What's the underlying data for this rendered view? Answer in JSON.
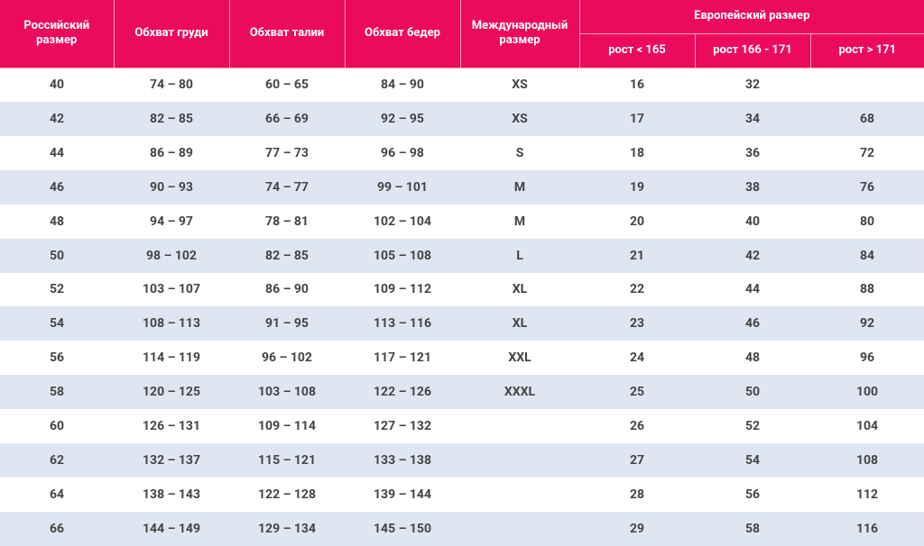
{
  "table": {
    "header": [
      "Российский размер",
      "Обхват груди",
      "Обхват талии",
      "Обхват бедер",
      "Международный размер"
    ],
    "group_header": "Европейский размер",
    "sub_header": [
      "рост < 165",
      "рост 166 - 171",
      "рост > 171"
    ],
    "rows": [
      [
        40,
        "74 – 80",
        "60 – 65",
        "84 – 90",
        "XS",
        16,
        32,
        null
      ],
      [
        42,
        "82 – 85",
        "66 – 69",
        "92 – 95",
        "XS",
        17,
        34,
        68
      ],
      [
        44,
        "86 – 89",
        "77 – 73",
        "96 – 98",
        "S",
        18,
        36,
        72
      ],
      [
        46,
        "90 – 93",
        "74 – 77",
        "99 – 101",
        "M",
        19,
        38,
        76
      ],
      [
        48,
        "94 – 97",
        "78 – 81",
        "102 – 104",
        "M",
        20,
        40,
        80
      ],
      [
        50,
        "98 – 102",
        "82 – 85",
        "105 – 108",
        "L",
        21,
        42,
        84
      ],
      [
        52,
        "103 – 107",
        "86 – 90",
        "109 – 112",
        "XL",
        22,
        44,
        88
      ],
      [
        54,
        "108 – 113",
        "91 – 95",
        "113 – 116",
        "XL",
        23,
        46,
        92
      ],
      [
        56,
        "114 – 119",
        "96 – 102",
        "117 – 121",
        "XXL",
        24,
        48,
        96
      ],
      [
        58,
        "120 – 125",
        "103 – 108",
        "122 – 126",
        "XXXL",
        25,
        50,
        100
      ],
      [
        60,
        "126 – 131",
        "109 – 114",
        "127 – 132",
        null,
        26,
        52,
        104
      ],
      [
        62,
        "132 – 137",
        "115 – 121",
        "133 – 138",
        null,
        27,
        54,
        108
      ],
      [
        64,
        "138 – 143",
        "122 – 128",
        "139 – 144",
        null,
        28,
        56,
        112
      ],
      [
        66,
        "144 – 149",
        "129 – 134",
        "145 – 150",
        null,
        29,
        58,
        116
      ]
    ]
  }
}
